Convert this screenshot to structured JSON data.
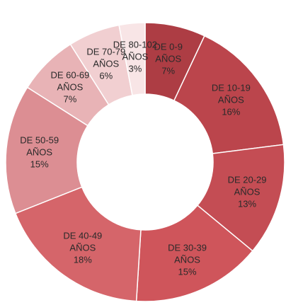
{
  "chart_data": {
    "type": "donut",
    "categories": [
      "DE 0-9 AÑOS",
      "DE 10-19 AÑOS",
      "DE 20-29 AÑOS",
      "DE 30-39 AÑOS",
      "DE 40-49 AÑOS",
      "DE 50-59 AÑOS",
      "DE 60-69 AÑOS",
      "DE 70-79 AÑOS",
      "DE 80-102 AÑOS"
    ],
    "values": [
      7,
      16,
      13,
      15,
      18,
      15,
      7,
      6,
      3
    ],
    "value_labels": [
      "7%",
      "16%",
      "13%",
      "15%",
      "18%",
      "15%",
      "7%",
      "6%",
      "3%"
    ],
    "colors": [
      "#ad3d44",
      "#bb454c",
      "#c44d54",
      "#cf555b",
      "#d5656a",
      "#dc8e93",
      "#e8b3b6",
      "#f1cfd1",
      "#f8e5e6"
    ]
  }
}
